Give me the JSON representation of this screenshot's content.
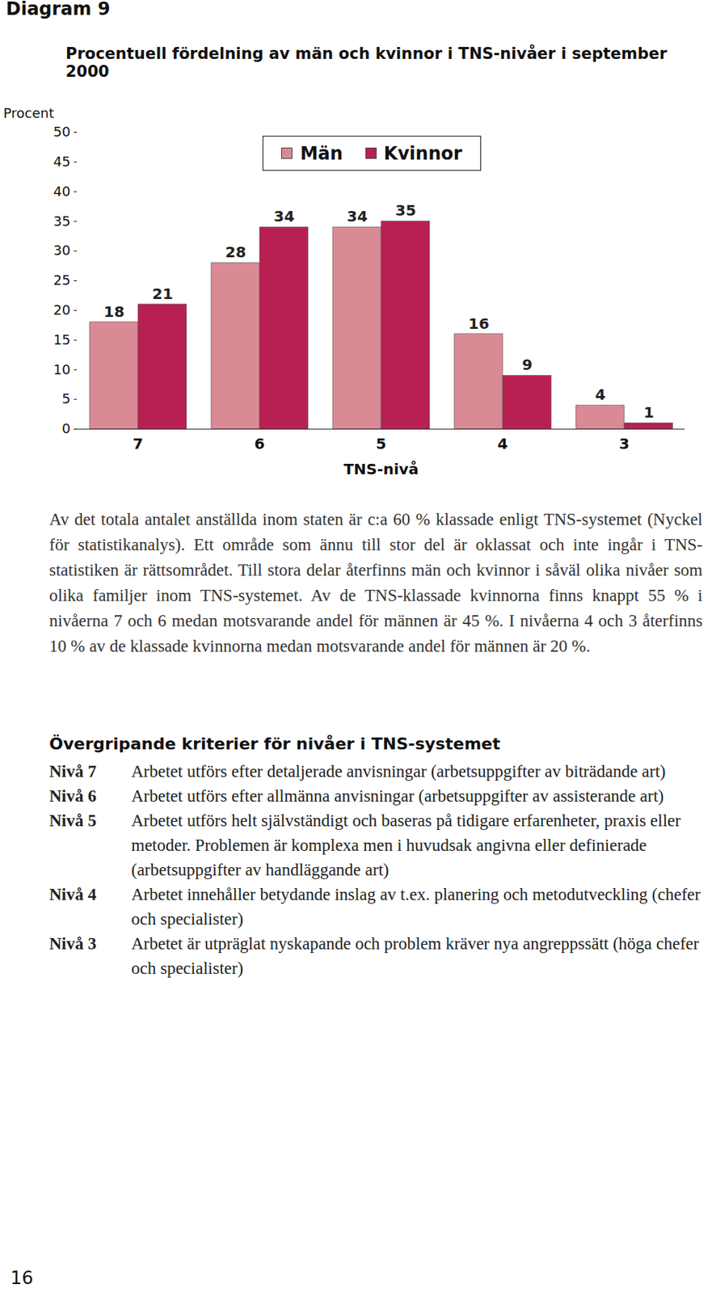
{
  "header": "Diagram 9",
  "chart_data": {
    "type": "bar",
    "title": "Procentuell fördelning av män och kvinnor i TNS-nivåer i september 2000",
    "x_label": "TNS-nivå",
    "y_label": "Procent",
    "categories": [
      "7",
      "6",
      "5",
      "4",
      "3"
    ],
    "series": [
      {
        "name": "Män",
        "color": "#d98a95",
        "values": [
          18,
          28,
          34,
          16,
          4
        ]
      },
      {
        "name": "Kvinnor",
        "color": "#b82052",
        "values": [
          21,
          34,
          35,
          9,
          1
        ]
      }
    ],
    "ylim": [
      0,
      50
    ],
    "yticks": [
      0,
      5,
      10,
      15,
      20,
      25,
      30,
      35,
      40,
      45,
      50
    ],
    "data_labels": true,
    "legend": "top"
  },
  "body": {
    "paragraph": "Av det totala antalet anställda inom staten är c:a 60 % klassade enligt TNS-systemet (Nyckel för statistikanalys). Ett område som ännu till stor del är oklassat och inte ingår i TNS-statistiken är rättsområdet. Till stora delar återfinns män och kvinnor i såväl olika nivåer som olika familjer inom TNS-systemet. Av de TNS-klassade kvinnorna finns knappt 55 % i nivåerna 7 och 6 medan motsvarande andel för männen är 45 %. I nivåerna 4 och 3 återfinns 10 % av de klassade kvinnorna medan motsvarande andel för männen är 20 %.",
    "criteria_heading": "Övergripande kriterier för nivåer i TNS-systemet",
    "criteria": [
      {
        "label": "Nivå 7",
        "text": "Arbetet utförs efter detaljerade anvisningar (arbetsuppgifter av biträdande art)"
      },
      {
        "label": "Nivå 6",
        "text": "Arbetet utförs efter allmänna anvisningar (arbetsuppgifter av assisterande art)"
      },
      {
        "label": "Nivå 5",
        "text": "Arbetet utförs helt självständigt och baseras på tidigare erfarenheter, praxis eller metoder. Problemen är komplexa men i huvudsak angivna eller definierade (arbetsuppgifter av handläggande art)"
      },
      {
        "label": "Nivå 4",
        "text": "Arbetet innehåller betydande inslag av t.ex. planering och metodutveckling (chefer och specialister)"
      },
      {
        "label": "Nivå 3",
        "text": "Arbetet är utpräglat nyskapande och problem kräver nya angreppssätt (höga chefer och specialister)"
      }
    ]
  },
  "page_number": "16"
}
